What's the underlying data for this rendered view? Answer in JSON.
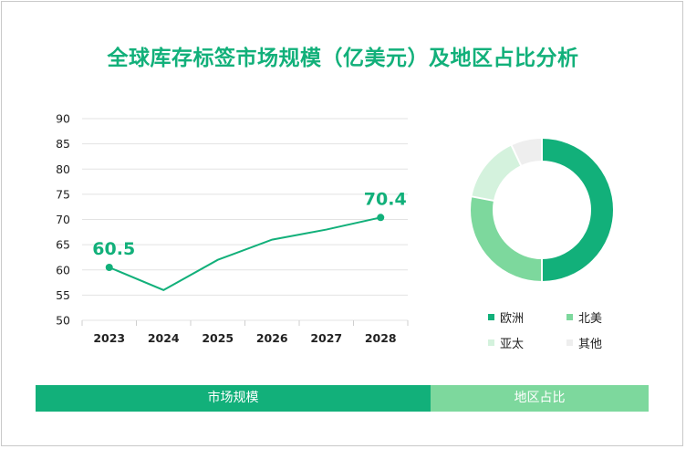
{
  "title": "全球库存标签市场规模（亿美元）及地区占比分析",
  "colors": {
    "primary": "#12b07a",
    "light_green": "#7dd89d",
    "pale_green": "#d4f2dd",
    "gray": "#eeeeee"
  },
  "chart_data": [
    {
      "type": "line",
      "x": [
        "2023",
        "2024",
        "2025",
        "2026",
        "2027",
        "2028"
      ],
      "values": [
        60.5,
        56,
        62,
        66,
        68,
        70.4
      ],
      "data_labels": [
        {
          "index": 0,
          "text": "60.5"
        },
        {
          "index": 5,
          "text": "70.4"
        }
      ],
      "ylim": [
        50,
        90
      ],
      "yticks": [
        50,
        55,
        60,
        65,
        70,
        75,
        80,
        85,
        90
      ],
      "grid": true,
      "title": "",
      "xlabel": "",
      "ylabel": ""
    },
    {
      "type": "pie",
      "donut": true,
      "slices": [
        {
          "label": "欧洲",
          "value": 50,
          "color": "#12b07a"
        },
        {
          "label": "北美",
          "value": 28,
          "color": "#7dd89d"
        },
        {
          "label": "亚太",
          "value": 15,
          "color": "#d4f2dd"
        },
        {
          "label": "其他",
          "value": 7,
          "color": "#eeeeee"
        }
      ],
      "legend_position": "bottom"
    }
  ],
  "footer": {
    "left_label": "市场规模",
    "right_label": "地区占比"
  }
}
